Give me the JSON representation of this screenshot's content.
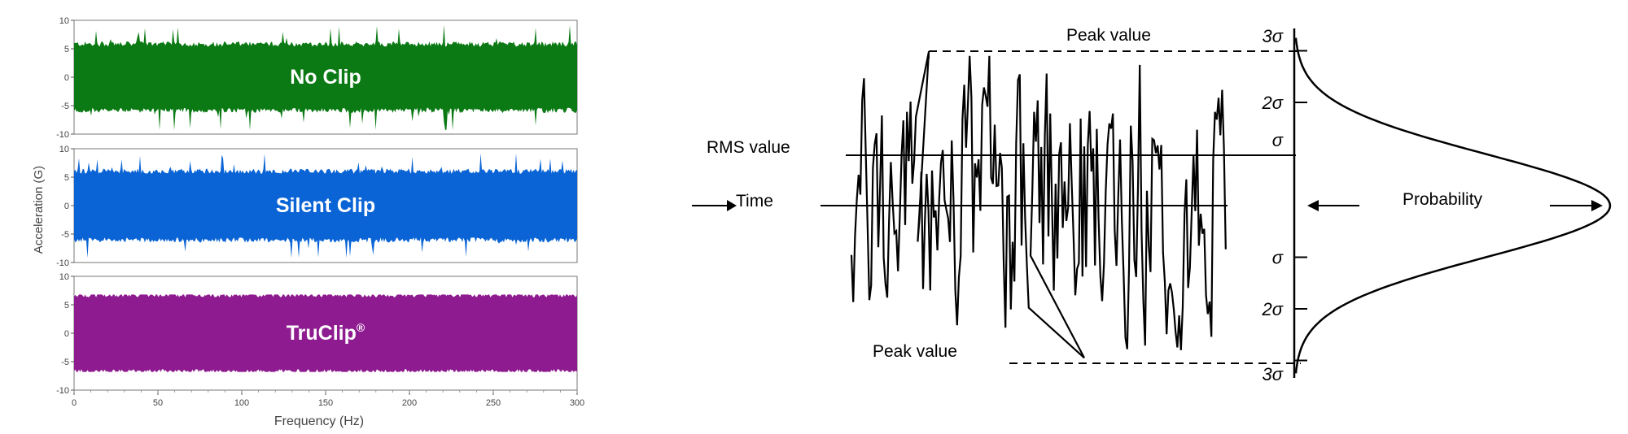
{
  "chart_data": [
    {
      "type": "line",
      "title": "",
      "xlabel": "Frequency (Hz)",
      "ylabel": "Acceleration (G)",
      "xlim": [
        0,
        300
      ],
      "x_ticks": [
        "0",
        "50",
        "100",
        "150",
        "200",
        "250",
        "300"
      ],
      "ylim": [
        -10,
        10
      ],
      "y_ticks": [
        "10",
        "5",
        "0",
        "-5",
        "-10"
      ],
      "panels": [
        {
          "name": "No Clip",
          "color": "#0b7a14",
          "rms": 5.4,
          "peak": 9.3
        },
        {
          "name": "Silent Clip",
          "color": "#0a64d6",
          "rms": 5.6,
          "peak": 9.2
        },
        {
          "name": "TruClip",
          "label_mark": "®",
          "color": "#8e1b8f",
          "rms": 6.3,
          "peak": 6.8
        }
      ]
    },
    {
      "type": "line",
      "title": "",
      "labels": {
        "rms": "RMS value",
        "time": "Time",
        "peak_top": "Peak value",
        "peak_bottom": "Peak value",
        "probability": "Probability"
      },
      "sigma_levels": [
        {
          "label": "3σ",
          "level": 3
        },
        {
          "label": "2σ",
          "level": 2
        },
        {
          "label": "σ",
          "level": 1
        },
        {
          "label": "σ",
          "level": -1
        },
        {
          "label": "2σ",
          "level": -2
        },
        {
          "label": "3σ",
          "level": -3
        }
      ],
      "distribution": "normal"
    }
  ]
}
